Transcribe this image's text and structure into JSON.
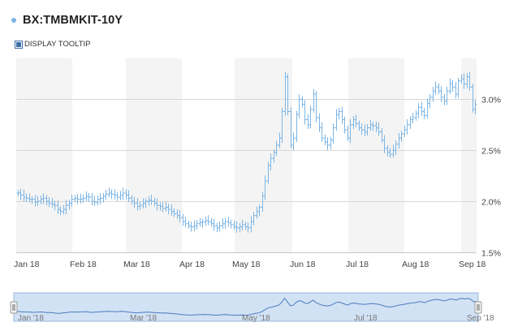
{
  "header": {
    "title": "BX:TMBMKIT-10Y",
    "tooltip_label": "DISPLAY TOOLTIP"
  },
  "colors": {
    "series": "#7cb5e4",
    "band": "#f4f4f4",
    "grid": "#d8d8d8",
    "navigator_fill": "#d2e2f5",
    "navigator_border": "#9ab7da"
  },
  "chart_data": {
    "type": "ohlc",
    "title": "BX:TMBMKIT-10Y",
    "xlabel": "",
    "ylabel": "",
    "y_axis_position": "right",
    "ylim": [
      1.5,
      3.4
    ],
    "y_ticks": [
      1.5,
      2.0,
      2.5,
      3.0
    ],
    "y_tick_labels": [
      "1.5%",
      "2.0%",
      "2.5%",
      "3.0%"
    ],
    "x_ticks": [
      "Jan 18",
      "Feb 18",
      "Mar 18",
      "Apr 18",
      "May 18",
      "Jun 18",
      "Jul 18",
      "Aug 18",
      "Sep 18"
    ],
    "navigator_labels": [
      "Jan '18",
      "Mar '18",
      "May '18",
      "Jul '18",
      "Sep '18"
    ],
    "grid": true,
    "legend": "none",
    "series": [
      {
        "values": [
          2.08,
          2.06,
          2.04,
          2.03,
          2.02,
          2.02,
          1.99,
          2.0,
          2.02,
          2.03,
          2.0,
          1.98,
          1.97,
          1.96,
          1.92,
          1.9,
          1.92,
          1.96,
          1.98,
          2.02,
          2.03,
          2.02,
          2.02,
          2.03,
          2.05,
          2.04,
          2.0,
          1.99,
          2.02,
          2.03,
          2.05,
          2.07,
          2.08,
          2.07,
          2.06,
          2.04,
          2.06,
          2.08,
          2.06,
          2.03,
          2.0,
          1.98,
          1.95,
          1.96,
          1.98,
          2.0,
          2.01,
          2.0,
          1.98,
          1.96,
          1.95,
          1.93,
          1.94,
          1.92,
          1.9,
          1.88,
          1.86,
          1.84,
          1.8,
          1.78,
          1.76,
          1.75,
          1.76,
          1.78,
          1.79,
          1.8,
          1.81,
          1.8,
          1.78,
          1.76,
          1.74,
          1.76,
          1.78,
          1.8,
          1.79,
          1.77,
          1.75,
          1.74,
          1.75,
          1.77,
          1.75,
          1.74,
          1.8,
          1.86,
          1.9,
          1.94,
          2.05,
          2.2,
          2.35,
          2.42,
          2.48,
          2.55,
          2.62,
          2.88,
          3.22,
          2.88,
          2.55,
          2.62,
          2.85,
          3.0,
          2.95,
          2.8,
          2.75,
          2.9,
          3.05,
          2.82,
          2.72,
          2.62,
          2.58,
          2.55,
          2.6,
          2.72,
          2.85,
          2.88,
          2.8,
          2.7,
          2.62,
          2.75,
          2.8,
          2.76,
          2.72,
          2.7,
          2.68,
          2.72,
          2.75,
          2.74,
          2.72,
          2.68,
          2.6,
          2.52,
          2.48,
          2.46,
          2.5,
          2.56,
          2.62,
          2.66,
          2.7,
          2.75,
          2.8,
          2.82,
          2.86,
          2.92,
          2.88,
          2.84,
          2.96,
          3.02,
          3.08,
          3.12,
          3.08,
          3.02,
          2.98,
          3.08,
          3.15,
          3.12,
          3.05,
          3.18,
          3.2,
          3.15,
          3.22,
          3.12,
          2.9,
          2.95
        ]
      }
    ]
  }
}
